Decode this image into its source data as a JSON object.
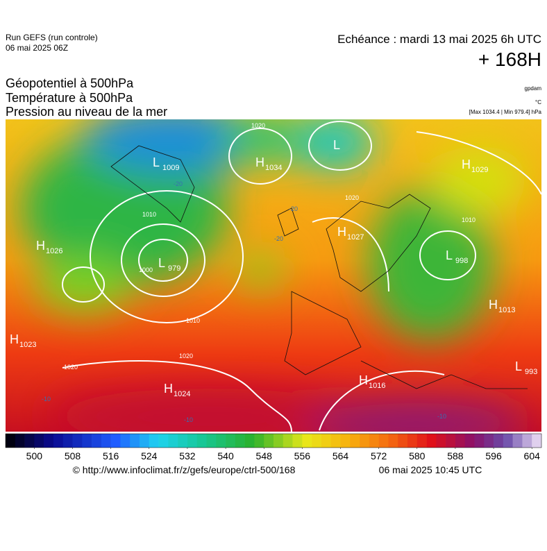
{
  "header": {
    "run": "Run GEFS (run controle)",
    "run_date": "06 mai 2025 06Z",
    "valid": "Echéance : mardi 13 mai 2025 6h UTC",
    "lead": "+ 168H"
  },
  "legend": {
    "lines": [
      "Géopotentiel à 500hPa",
      "Température à 500hPa",
      "Pression au niveau de la mer"
    ],
    "units": [
      "gpdam",
      "°C",
      "[Max 1034.4 | Min 979.4] hPa"
    ]
  },
  "centers": [
    {
      "type": "L",
      "label": "1009"
    },
    {
      "type": "H",
      "label": "1034"
    },
    {
      "type": "L"
    },
    {
      "type": "H",
      "label": "1029"
    },
    {
      "type": "H",
      "label": "1026"
    },
    {
      "type": "L",
      "label": "979"
    },
    {
      "type": "H",
      "label": "1027"
    },
    {
      "type": "L",
      "label": "998"
    },
    {
      "type": "H",
      "label": "1013"
    },
    {
      "type": "H",
      "label": "1023"
    },
    {
      "type": "H",
      "label": "1024"
    },
    {
      "type": "H",
      "label": "1016"
    },
    {
      "type": "L",
      "label": "993"
    }
  ],
  "contour_labels": [
    "1020",
    "1010",
    "1000",
    "1010",
    "1020",
    "1020",
    "1020",
    "1010",
    "-20",
    "-20",
    "-20",
    "-10",
    "-10",
    "-10"
  ],
  "colorbar": {
    "lim": [
      494,
      606
    ],
    "ticks": [
      500,
      508,
      516,
      524,
      532,
      540,
      548,
      556,
      564,
      572,
      580,
      588,
      596,
      604
    ]
  },
  "footer": {
    "source": "© http://www.infoclimat.fr/z/gefs/europe/ctrl-500/168",
    "issued": "06 mai 2025 10:45 UTC"
  }
}
